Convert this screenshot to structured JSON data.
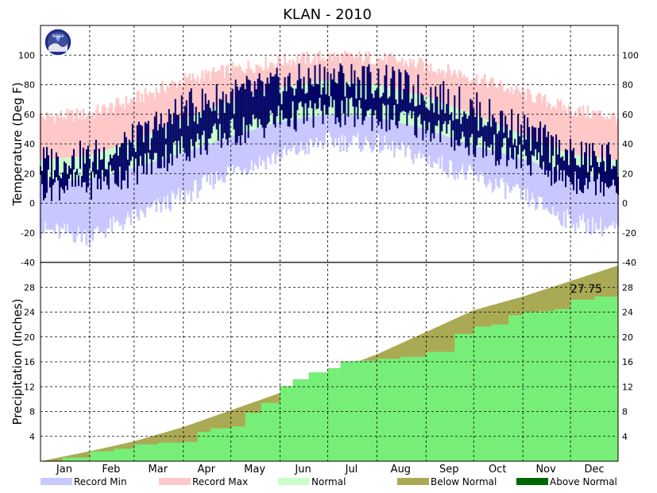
{
  "title": "KLAN - 2010",
  "colors": {
    "record_min": "#c8c8ff",
    "record_max": "#ffc8c8",
    "normal": "#c8ffc8",
    "observed": "#000066",
    "below_normal": "#aaaa55",
    "above_normal": "#006600",
    "precip_observed": "#77ee77",
    "grid": "#000000"
  },
  "noaa_logo": {
    "text": "NOAA"
  },
  "chart_data": [
    {
      "type": "area",
      "panel": "temperature",
      "ylabel": "Temperature (Deg F)",
      "ylim": [
        -40,
        120
      ],
      "yticks": [
        -40,
        -20,
        0,
        20,
        40,
        60,
        80,
        100
      ],
      "months": [
        "Jan",
        "Feb",
        "Mar",
        "Apr",
        "May",
        "Jun",
        "Jul",
        "Aug",
        "Sep",
        "Oct",
        "Nov",
        "Dec"
      ],
      "grid": true,
      "series_legend": [
        "Record Min",
        "Record Max",
        "Normal"
      ],
      "x_day": [
        1,
        32,
        60,
        91,
        121,
        152,
        182,
        213,
        244,
        274,
        305,
        335,
        365
      ],
      "record_max": [
        58,
        60,
        70,
        83,
        90,
        96,
        99,
        98,
        93,
        85,
        74,
        63,
        58
      ],
      "record_min": [
        -18,
        -22,
        -10,
        5,
        22,
        32,
        42,
        40,
        30,
        18,
        5,
        -12,
        -18
      ],
      "normal_high": [
        29,
        32,
        42,
        57,
        69,
        78,
        83,
        80,
        72,
        60,
        46,
        33,
        29
      ],
      "normal_low": [
        15,
        16,
        24,
        34,
        45,
        55,
        60,
        58,
        50,
        39,
        30,
        20,
        15
      ],
      "observed_high": [
        27,
        30,
        41,
        63,
        72,
        79,
        85,
        82,
        74,
        63,
        49,
        31,
        30
      ],
      "observed_low": [
        12,
        13,
        22,
        37,
        47,
        57,
        62,
        59,
        52,
        40,
        30,
        16,
        15
      ]
    },
    {
      "type": "area",
      "panel": "precipitation",
      "ylabel": "Precipitation (Inches)",
      "ylim": [
        0,
        32
      ],
      "yticks": [
        4,
        8,
        12,
        16,
        20,
        24,
        28
      ],
      "grid": true,
      "annotation": "27.75",
      "normal_cumulative": {
        "x_day": [
          1,
          32,
          60,
          91,
          121,
          152,
          182,
          213,
          244,
          274,
          305,
          335,
          365
        ],
        "values": [
          0,
          1.6,
          3.2,
          5.5,
          8.2,
          11.0,
          14.2,
          17.2,
          20.8,
          24.3,
          26.5,
          29.0,
          31.5
        ]
      },
      "observed_cumulative": {
        "x_day": [
          1,
          15,
          32,
          47,
          60,
          75,
          91,
          100,
          108,
          121,
          130,
          140,
          152,
          160,
          170,
          182,
          190,
          200,
          213,
          228,
          244,
          262,
          274,
          285,
          296,
          305,
          315,
          325,
          335,
          350,
          365
        ],
        "values": [
          0,
          0.6,
          1.6,
          2.0,
          2.7,
          3.0,
          3.1,
          4.7,
          5.3,
          5.6,
          7.8,
          9.4,
          12.1,
          13.2,
          14.3,
          15.0,
          16.1,
          16.2,
          16.5,
          16.8,
          17.6,
          20.5,
          21.7,
          22.0,
          23.5,
          24.0,
          24.2,
          24.5,
          26.0,
          26.5,
          27.75
        ]
      }
    }
  ],
  "legend": [
    {
      "key": "record_min",
      "label": "Record Min"
    },
    {
      "key": "record_max",
      "label": "Record Max"
    },
    {
      "key": "normal",
      "label": "Normal"
    },
    {
      "key": "below_normal",
      "label": "Below Normal"
    },
    {
      "key": "above_normal",
      "label": "Above Normal"
    }
  ]
}
